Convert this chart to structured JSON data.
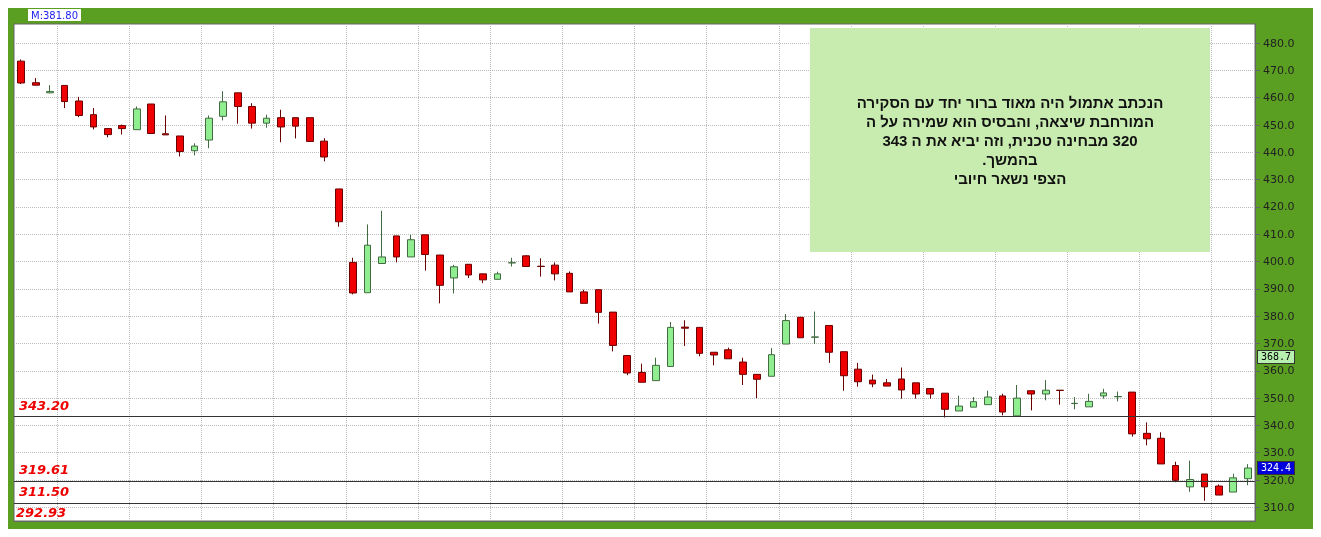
{
  "chart_data": {
    "type": "candlestick",
    "categories": [
      null,
      null,
      null,
      null,
      null,
      null,
      null,
      null,
      null,
      null,
      null,
      null,
      null,
      null,
      null,
      null,
      null,
      null,
      null,
      null,
      null,
      null,
      null,
      null,
      null,
      null,
      null,
      null,
      null,
      null,
      null,
      null,
      null,
      null,
      null,
      null,
      null,
      null,
      null,
      null,
      null,
      null,
      null,
      null,
      null,
      null,
      null,
      null,
      null,
      null,
      null,
      null,
      null,
      null,
      null,
      null,
      null,
      null,
      null,
      null,
      null,
      null,
      null,
      null,
      null,
      null,
      null,
      null,
      null,
      null,
      null,
      null,
      null,
      null,
      null,
      null,
      null,
      null,
      null,
      null,
      null,
      null,
      null,
      null,
      null,
      null
    ],
    "ohlc": [
      [
        473.4,
        474,
        465,
        465.4
      ],
      [
        465.5,
        467.2,
        464.5,
        464.6
      ],
      [
        461.8,
        464.6,
        461.6,
        462.3
      ],
      [
        464.5,
        464.5,
        456.2,
        458.6
      ],
      [
        458.8,
        460.3,
        452.9,
        453.5
      ],
      [
        453.8,
        456.2,
        448.4,
        449.3
      ],
      [
        448.7,
        448.7,
        445.5,
        446.5
      ],
      [
        449.8,
        450.2,
        446.5,
        448.7
      ],
      [
        448.3,
        456.8,
        448.3,
        455.9
      ],
      [
        457.7,
        457.7,
        446.9,
        446.9
      ],
      [
        446.8,
        453.5,
        446.4,
        446.4
      ],
      [
        446,
        446,
        438.5,
        440.3
      ],
      [
        440.6,
        443.3,
        438.9,
        442.3
      ],
      [
        444.5,
        453.5,
        441.5,
        452.5
      ],
      [
        453.2,
        462.4,
        451.7,
        458.5
      ],
      [
        461.8,
        461.8,
        450.5,
        456.8
      ],
      [
        456.8,
        458,
        448.7,
        450.7
      ],
      [
        450.7,
        453.8,
        449,
        452.5
      ],
      [
        452.7,
        455.6,
        443.7,
        449.3
      ],
      [
        452.7,
        452.7,
        445.1,
        449.6
      ],
      [
        452.7,
        452.7,
        443.8,
        444
      ],
      [
        444.1,
        445.2,
        436.7,
        438.3
      ],
      [
        426.6,
        426.6,
        412.8,
        414.6
      ],
      [
        399.7,
        401.4,
        388,
        388.5
      ],
      [
        388.6,
        413.6,
        388.6,
        406
      ],
      [
        399.3,
        418.6,
        399.3,
        401.7
      ],
      [
        409.4,
        409.4,
        399.7,
        401.7
      ],
      [
        401.7,
        409.8,
        401.7,
        408
      ],
      [
        409.8,
        409.8,
        396.7,
        402.6
      ],
      [
        402.4,
        402.4,
        384.7,
        391.3
      ],
      [
        394,
        398.8,
        388.3,
        398.1
      ],
      [
        399,
        399,
        394,
        395.1
      ],
      [
        395.5,
        395.5,
        392.1,
        393.3
      ],
      [
        393.5,
        396.3,
        393.5,
        395.5
      ],
      [
        399.5,
        401.4,
        398.2,
        399.6
      ],
      [
        402.1,
        402.4,
        398.2,
        398.2
      ],
      [
        398.3,
        401.2,
        394.5,
        398.2
      ],
      [
        398.7,
        399.7,
        393.1,
        395.5
      ],
      [
        395.7,
        396.4,
        388.9,
        388.9
      ],
      [
        388.9,
        389.7,
        384.7,
        384.7
      ],
      [
        389.7,
        389.7,
        377.3,
        381.4
      ],
      [
        381.5,
        381.5,
        367.1,
        369.3
      ],
      [
        365.6,
        365.6,
        358.4,
        359.2
      ],
      [
        359.4,
        362.6,
        355.8,
        355.8
      ],
      [
        356.4,
        364.8,
        356.4,
        362
      ],
      [
        361.6,
        377.9,
        361.6,
        375.9
      ],
      [
        376,
        378.5,
        369.1,
        375.6
      ],
      [
        375.9,
        375.9,
        365.3,
        366.4
      ],
      [
        366.8,
        366.8,
        362,
        365.8
      ],
      [
        367.7,
        368.5,
        364.4,
        364.4
      ],
      [
        363.2,
        364.8,
        354.8,
        358.7
      ],
      [
        358.7,
        358.7,
        350,
        356.9
      ],
      [
        358,
        368.3,
        358,
        365.9
      ],
      [
        369.8,
        380.8,
        369.8,
        378.4
      ],
      [
        379.6,
        379.6,
        372.1,
        372.1
      ],
      [
        372.3,
        381.7,
        369.8,
        372.4
      ],
      [
        376.6,
        376.6,
        362.9,
        366.8
      ],
      [
        367,
        367,
        352.7,
        358.2
      ],
      [
        360.6,
        362.9,
        354.2,
        356
      ],
      [
        356.6,
        358.6,
        354,
        355.2
      ],
      [
        355.6,
        357,
        354.4,
        354.4
      ],
      [
        357,
        361.2,
        349.8,
        353
      ],
      [
        355.6,
        355.6,
        349.8,
        351.5
      ],
      [
        353.5,
        353.5,
        349.8,
        351.5
      ],
      [
        351.8,
        351.8,
        342.9,
        345.9
      ],
      [
        345.3,
        350.9,
        345.3,
        347.1
      ],
      [
        346.7,
        350.4,
        346.7,
        348.7
      ],
      [
        347.6,
        352.7,
        347.6,
        350.4
      ],
      [
        350.8,
        351.6,
        343.7,
        344.9
      ],
      [
        343.5,
        354.8,
        343.5,
        350
      ],
      [
        352.7,
        352.7,
        345.5,
        351.5
      ],
      [
        351.5,
        356.6,
        349.2,
        352.9
      ],
      [
        352.9,
        352.9,
        347.6,
        352.8
      ],
      [
        348,
        350.4,
        345.9,
        348.1
      ],
      [
        346.8,
        351.6,
        346.8,
        348.8
      ],
      [
        350.8,
        353.4,
        349.8,
        351.9
      ],
      [
        350.5,
        352.4,
        348.8,
        350.6
      ],
      [
        352.2,
        352.2,
        335.9,
        336.9
      ],
      [
        337.1,
        341.1,
        332.7,
        335.1
      ],
      [
        335.3,
        337.5,
        325.9,
        325.9
      ],
      [
        325.3,
        326.7,
        319.2,
        319.9
      ],
      [
        317.5,
        327.1,
        315.7,
        320.2
      ],
      [
        322.2,
        322.2,
        312.4,
        317.5
      ],
      [
        317.8,
        318.4,
        314.5,
        314.5
      ],
      [
        315.6,
        322.3,
        315.6,
        320.8
      ],
      [
        320.5,
        325.8,
        318.1,
        324.4
      ]
    ],
    "colors": [
      "#ee0000",
      "#ee0000",
      "#90ee90",
      "#ee0000",
      "#ee0000",
      "#ee0000",
      "#ee0000",
      "#ee0000",
      "#90ee90",
      "#ee0000",
      "#ee0000",
      "#ee0000",
      "#90ee90",
      "#90ee90",
      "#90ee90",
      "#ee0000",
      "#ee0000",
      "#90ee90",
      "#ee0000",
      "#ee0000",
      "#ee0000",
      "#ee0000",
      "#ee0000",
      "#ee0000",
      "#90ee90",
      "#90ee90",
      "#ee0000",
      "#90ee90",
      "#ee0000",
      "#ee0000",
      "#90ee90",
      "#ee0000",
      "#ee0000",
      "#90ee90",
      "#90ee90",
      "#ee0000",
      "#ee0000",
      "#ee0000",
      "#ee0000",
      "#ee0000",
      "#ee0000",
      "#ee0000",
      "#ee0000",
      "#ee0000",
      "#90ee90",
      "#90ee90",
      "#ee0000",
      "#ee0000",
      "#ee0000",
      "#ee0000",
      "#ee0000",
      "#ee0000",
      "#90ee90",
      "#90ee90",
      "#ee0000",
      "#90ee90",
      "#ee0000",
      "#ee0000",
      "#ee0000",
      "#ee0000",
      "#ee0000",
      "#ee0000",
      "#ee0000",
      "#ee0000",
      "#ee0000",
      "#90ee90",
      "#90ee90",
      "#90ee90",
      "#ee0000",
      "#90ee90",
      "#ee0000",
      "#90ee90",
      "#ee0000",
      "#90ee90",
      "#90ee90",
      "#90ee90",
      "#90ee90",
      "#ee0000",
      "#ee0000",
      "#ee0000",
      "#ee0000",
      "#90ee90",
      "#ee0000",
      "#ee0000",
      "#90ee90",
      "#90ee90"
    ],
    "ylim": [
      305,
      487
    ],
    "yticks": [
      {
        "value": 310,
        "label": "310.0"
      },
      {
        "value": 320,
        "label": "320.0"
      },
      {
        "value": 330,
        "label": "330.0"
      },
      {
        "value": 340,
        "label": "340.0"
      },
      {
        "value": 350,
        "label": "350.0"
      },
      {
        "value": 360,
        "label": "360.0"
      },
      {
        "value": 370,
        "label": "370.0"
      },
      {
        "value": 380,
        "label": "380.0"
      },
      {
        "value": 390,
        "label": "390.0"
      },
      {
        "value": 400,
        "label": "400.0"
      },
      {
        "value": 410,
        "label": "410.0"
      },
      {
        "value": 420,
        "label": "420.0"
      },
      {
        "value": 430,
        "label": "430.0"
      },
      {
        "value": 440,
        "label": "440.0"
      },
      {
        "value": 450,
        "label": "450.0"
      },
      {
        "value": 460,
        "label": "460.0"
      },
      {
        "value": 470,
        "label": "470.0"
      },
      {
        "value": 480,
        "label": "480.0"
      }
    ],
    "ref_lines": [
      {
        "axis": "y",
        "value": 343.2,
        "label": "343.20"
      },
      {
        "axis": "y",
        "value": 319.61,
        "label": "319.61"
      },
      {
        "axis": "y",
        "value": 311.5,
        "label": "311.50"
      }
    ],
    "annotations": [
      "M:381.80",
      "הנכתב אתמול היה מאוד ברור יחד עם   הסקירה\nהמורחבת שיצאה,  והבסיס הוא  שמירה על ה\n320  מבחינה טכנית, וזה יביא את ה 343\nבהמשך.\nהצפי נשאר חיובי",
      "292.93",
      "368.7",
      {
        "text": "324.4",
        "y": 324.4
      }
    ],
    "grid": true,
    "tick_labels": "y"
  }
}
